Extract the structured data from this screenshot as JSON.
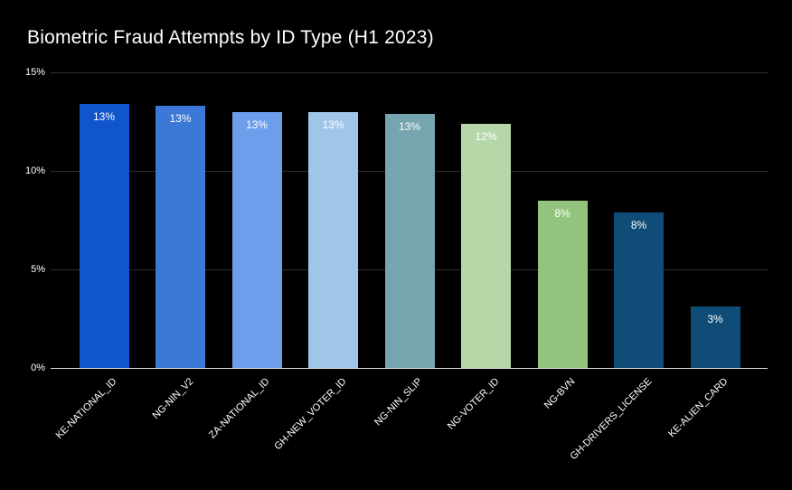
{
  "chart_data": {
    "type": "bar",
    "title": "Biometric Fraud Attempts by ID Type (H1 2023)",
    "categories": [
      "KE-NATIONAL_ID",
      "NG-NIN_V2",
      "ZA-NATIONAL_ID",
      "GH-NEW_VOTER_ID",
      "NG-NIN_SLIP",
      "NG-VOTER_ID",
      "NG-BVN",
      "GH-DRIVERS_LICENSE",
      "KE-ALIEN_CARD"
    ],
    "values": [
      13.4,
      13.3,
      13.0,
      13.0,
      12.9,
      12.4,
      8.5,
      7.9,
      3.1
    ],
    "bar_labels": [
      "13%",
      "13%",
      "13%",
      "13%",
      "13%",
      "12%",
      "8%",
      "8%",
      "3%"
    ],
    "bar_colors": [
      "#1155cc",
      "#3c78d8",
      "#6d9eeb",
      "#9fc5e8",
      "#76a5af",
      "#b6d7a8",
      "#93c47d",
      "#0f4d78",
      "#0f4d78"
    ],
    "xlabel": "",
    "ylabel": "",
    "ylim": [
      0,
      15
    ],
    "yticks": [
      {
        "value": 0,
        "label": "0%"
      },
      {
        "value": 5,
        "label": "5%"
      },
      {
        "value": 10,
        "label": "10%"
      },
      {
        "value": 15,
        "label": "15%"
      }
    ],
    "grid": true,
    "legend_position": "none",
    "background_color": "#000000",
    "grid_color": "#2e2e2e",
    "baseline_color": "#d9d9d9",
    "text_color": "#ffffff"
  }
}
